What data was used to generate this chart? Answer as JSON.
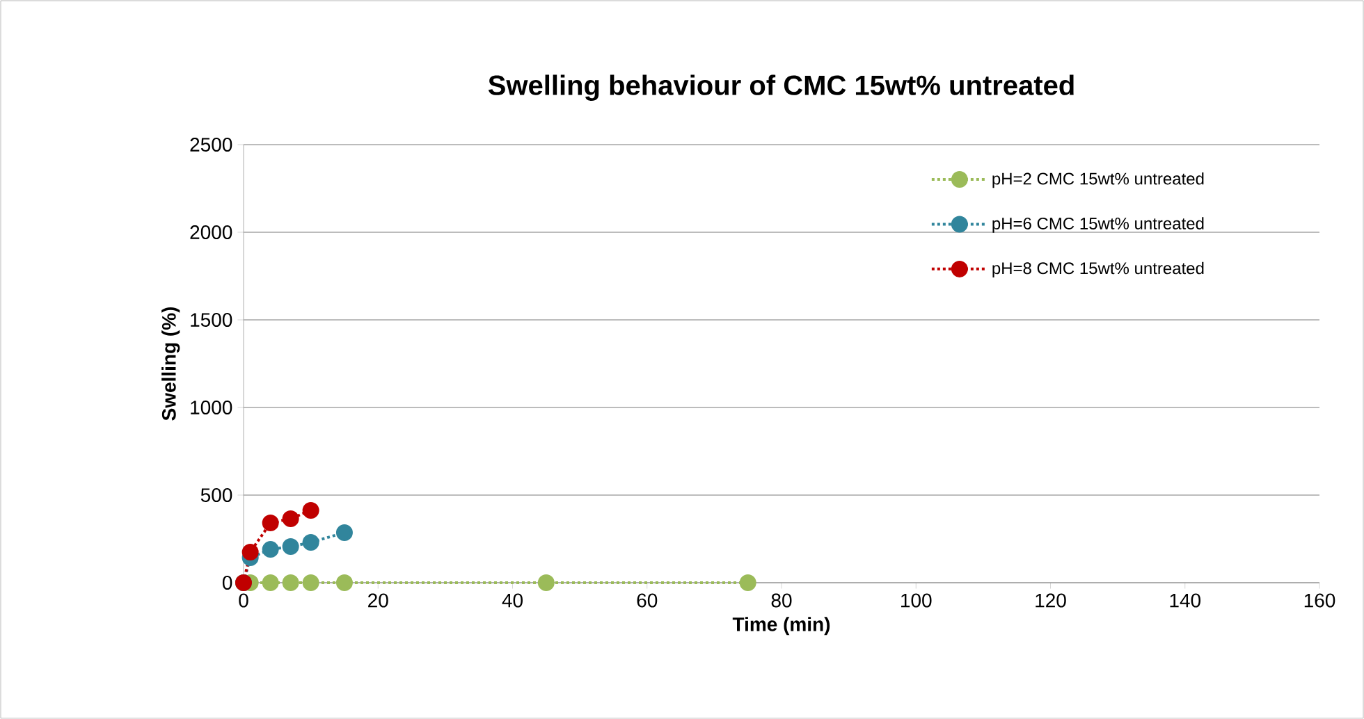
{
  "chart_data": {
    "type": "line",
    "title": "Swelling behaviour of CMC 15wt% untreated",
    "xlabel": "Time (min)",
    "ylabel": "Swelling (%)",
    "xlim": [
      0,
      160
    ],
    "xticks": [
      0,
      20,
      40,
      60,
      80,
      100,
      120,
      140,
      160
    ],
    "ylim": [
      0,
      2500
    ],
    "yticks": [
      0,
      500,
      1000,
      1500,
      2000,
      2500
    ],
    "grid": "y",
    "legend": "top right",
    "marker": "circle",
    "line_style": "dotted",
    "series": [
      {
        "name": "pH=2 CMC 15wt% untreated",
        "color": "#9bbb59",
        "x": [
          0,
          1,
          4,
          7,
          10,
          15,
          45,
          75
        ],
        "values": [
          0,
          0,
          0,
          0,
          0,
          0,
          0,
          0
        ]
      },
      {
        "name": "pH=6 CMC 15wt% untreated",
        "color": "#31859c",
        "x": [
          0,
          1,
          4,
          7,
          10,
          15
        ],
        "values": [
          0,
          143,
          190,
          206,
          230,
          286
        ]
      },
      {
        "name": "pH=8 CMC 15wt% untreated",
        "color": "#c00000",
        "x": [
          0,
          1,
          4,
          7,
          10
        ],
        "values": [
          0,
          175,
          341,
          365,
          413
        ]
      }
    ]
  }
}
